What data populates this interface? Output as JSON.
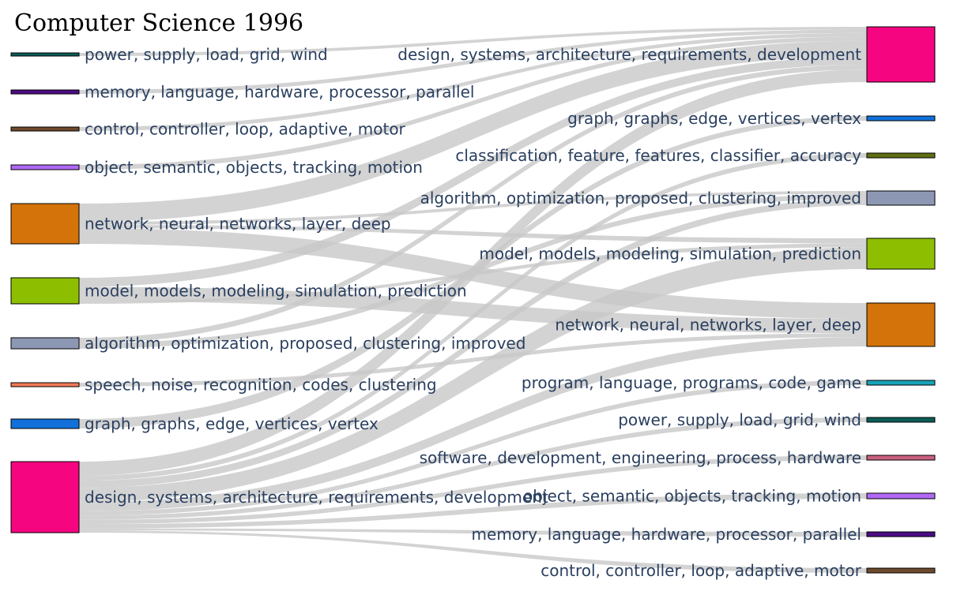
{
  "title": "Computer Science 1996",
  "nodes": {
    "left": [
      {
        "label": "power, supply, load, grid, wind",
        "color": "#0d5c57"
      },
      {
        "label": "memory, language, hardware, processor, parallel",
        "color": "#4d0c85"
      },
      {
        "label": "control, controller, loop, adaptive, motor",
        "color": "#6e4a2d"
      },
      {
        "label": "object, semantic, objects, tracking, motion",
        "color": "#b069f5"
      },
      {
        "label": "network, neural, networks, layer, deep",
        "color": "#d4730a"
      },
      {
        "label": "model, models, modeling, simulation, prediction",
        "color": "#8dbf00"
      },
      {
        "label": "algorithm, optimization, proposed, clustering, improved",
        "color": "#8c98b3"
      },
      {
        "label": "speech, noise, recognition, codes, clustering",
        "color": "#f07a58"
      },
      {
        "label": "graph, graphs, edge, vertices, vertex",
        "color": "#1170d9"
      },
      {
        "label": "design, systems, architecture, requirements, development",
        "color": "#f50580"
      }
    ],
    "right": [
      {
        "label": "design, systems, architecture, requirements, development",
        "color": "#f50580"
      },
      {
        "label": "graph, graphs, edge, vertices, vertex",
        "color": "#1170d9"
      },
      {
        "label": "classification, feature, features, classifier, accuracy",
        "color": "#5f6e14"
      },
      {
        "label": "algorithm, optimization, proposed, clustering, improved",
        "color": "#8c98b3"
      },
      {
        "label": "model, models, modeling, simulation, prediction",
        "color": "#8dbf00"
      },
      {
        "label": "network, neural, networks, layer, deep",
        "color": "#d4730a"
      },
      {
        "label": "program, language, programs, code, game",
        "color": "#18a3b8"
      },
      {
        "label": "power, supply, load, grid, wind",
        "color": "#0d5c57"
      },
      {
        "label": "software, development, engineering, process, hardware",
        "color": "#c9607f"
      },
      {
        "label": "object, semantic, objects, tracking, motion",
        "color": "#b069f5"
      },
      {
        "label": "memory, language, hardware, processor, parallel",
        "color": "#4d0c85"
      },
      {
        "label": "control, controller, loop, adaptive, motor",
        "color": "#6e4a2d"
      }
    ]
  }
}
